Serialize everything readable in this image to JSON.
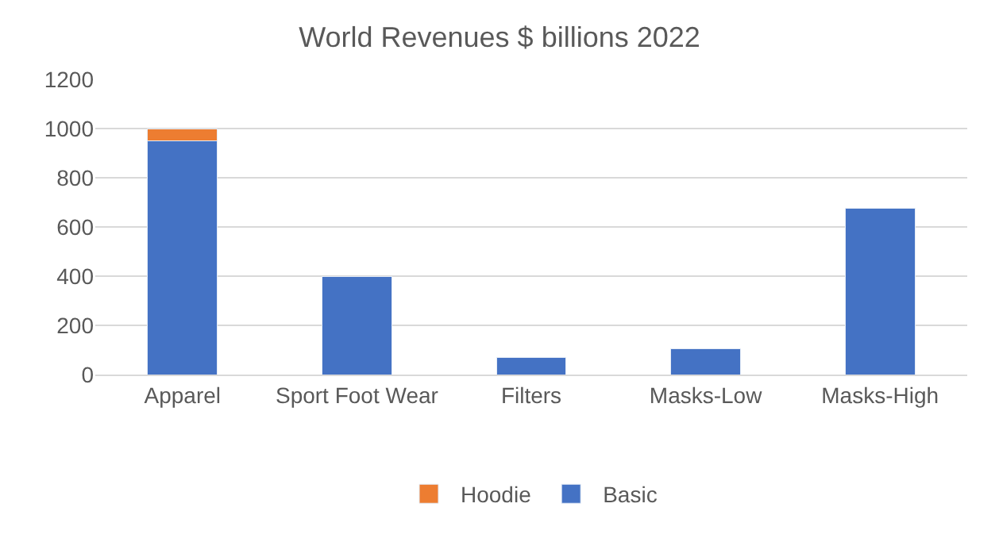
{
  "chart_data": {
    "type": "bar",
    "title": "World Revenues $ billions 2022",
    "categories": [
      "Apparel",
      "Sport Foot Wear",
      "Filters",
      "Masks-Low",
      "Masks-High"
    ],
    "series": [
      {
        "name": "Basic",
        "color": "#4472c4",
        "values": [
          950,
          400,
          70,
          105,
          675
        ]
      },
      {
        "name": "Hoodie",
        "color": "#ed7d31",
        "values": [
          50,
          null,
          null,
          null,
          null
        ]
      }
    ],
    "stacked": true,
    "ylim": [
      0,
      1200
    ],
    "yticks": [
      0,
      200,
      400,
      600,
      800,
      1000,
      1200
    ],
    "grid": "y",
    "legend": "bottom"
  }
}
